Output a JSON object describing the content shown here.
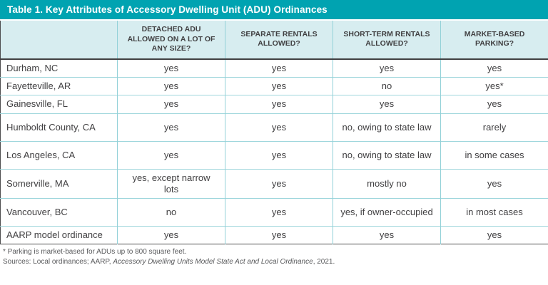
{
  "title": "Table 1. Key Attributes of Accessory Dwelling Unit (ADU) Ordinances",
  "colors": {
    "title_bar_bg": "#00a3b1",
    "header_row_bg": "#d7edf0",
    "divider_teal": "#93d1d8",
    "dark_border": "#4d4d4f",
    "text": "#414042",
    "footnote_text": "#58595b"
  },
  "chart_data": {
    "type": "table",
    "title": "Table 1. Key Attributes of Accessory Dwelling Unit (ADU) Ordinances",
    "columns": [
      "",
      "DETACHED ADU ALLOWED ON A LOT OF ANY SIZE?",
      "SEPARATE RENTALS ALLOWED?",
      "SHORT-TERM RENTALS ALLOWED?",
      "MARKET-BASED PARKING?"
    ],
    "rows": [
      [
        "Durham, NC",
        "yes",
        "yes",
        "yes",
        "yes"
      ],
      [
        "Fayetteville, AR",
        "yes",
        "yes",
        "no",
        "yes*"
      ],
      [
        "Gainesville, FL",
        "yes",
        "yes",
        "yes",
        "yes"
      ],
      [
        "Humboldt County, CA",
        "yes",
        "yes",
        "no, owing to state law",
        "rarely"
      ],
      [
        "Los Angeles, CA",
        "yes",
        "yes",
        "no, owing to state law",
        "in some cases"
      ],
      [
        "Somerville, MA",
        "yes, except narrow lots",
        "yes",
        "mostly no",
        "yes"
      ],
      [
        "Vancouver, BC",
        "no",
        "yes",
        "yes, if owner-occupied",
        "in most cases"
      ],
      [
        "AARP model ordinance",
        "yes",
        "yes",
        "yes",
        "yes"
      ]
    ]
  },
  "footnotes": {
    "line1": "* Parking is market-based for ADUs up to 800 square feet.",
    "line2_prefix": "Sources: Local ordinances; AARP, ",
    "line2_italic": "Accessory Dwelling Units Model State Act and Local Ordinance",
    "line2_suffix": ", 2021."
  }
}
